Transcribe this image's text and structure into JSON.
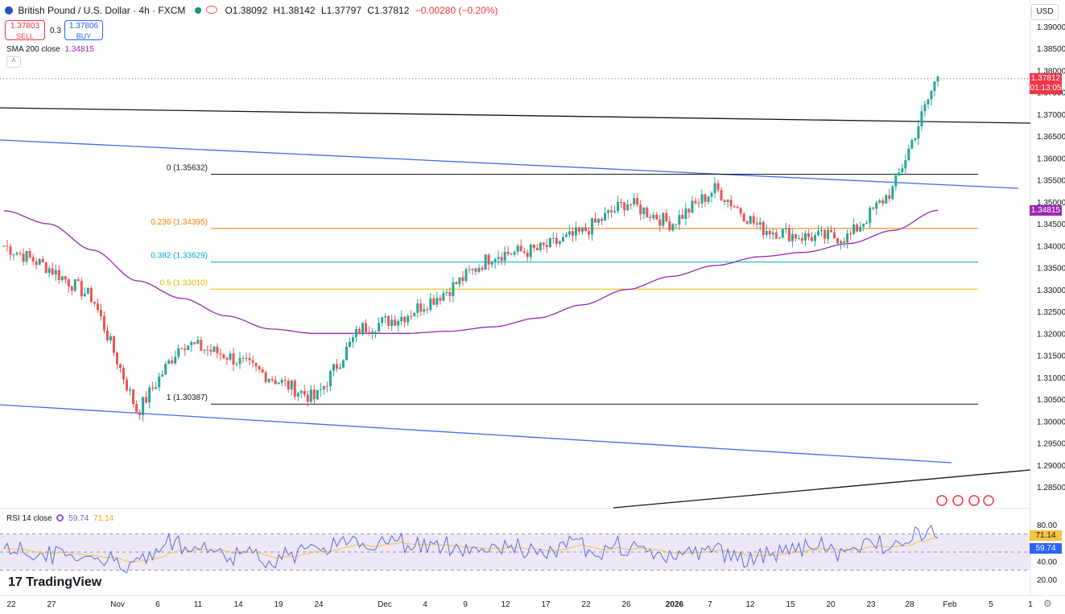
{
  "header": {
    "title": "British Pound / U.S. Dollar · 4h · FXCM",
    "ohlc": [
      {
        "label": "O",
        "value": "1.38092"
      },
      {
        "label": "H",
        "value": "1.38142"
      },
      {
        "label": "L",
        "value": "1.37797"
      },
      {
        "label": "C",
        "value": "1.37812"
      }
    ],
    "change": "−0.00280 (−0.20%)",
    "sell": {
      "price": "1.37803",
      "label": "SELL"
    },
    "buy": {
      "price": "1.37806",
      "label": "BUY"
    },
    "spread": "0.3",
    "currency": "USD"
  },
  "indicators": {
    "sma": {
      "label": "SMA 200 close",
      "value": "1.34815"
    },
    "rsi": {
      "label": "RSI 14 close",
      "value1": "59.74",
      "value2": "71.14"
    }
  },
  "price_axis": {
    "ticks": [
      "1.39000",
      "1.38500",
      "1.38000",
      "1.37500",
      "1.37000",
      "1.36500",
      "1.36000",
      "1.35500",
      "1.35000",
      "1.34500",
      "1.34000",
      "1.33500",
      "1.33000",
      "1.32500",
      "1.32000",
      "1.31500",
      "1.31000",
      "1.30500",
      "1.30000",
      "1.29500",
      "1.29000",
      "1.28500"
    ],
    "current_price": "1.37812",
    "countdown": "01:13:05",
    "sma_label": "1.34815"
  },
  "rsi_axis": {
    "ticks": [
      "80.00",
      "40.00",
      "20.00"
    ],
    "label1": "71.14",
    "label2": "59.74"
  },
  "time_axis": {
    "ticks": [
      "22",
      "27",
      "Nov",
      "6",
      "11",
      "14",
      "19",
      "24",
      "Dec",
      "4",
      "9",
      "12",
      "17",
      "22",
      "26",
      "2026",
      "7",
      "12",
      "15",
      "20",
      "23",
      "28",
      "Feb",
      "5",
      "1"
    ]
  },
  "fib_labels": [
    {
      "text": "0 (1.35632)",
      "color": "#131722"
    },
    {
      "text": "0.236 (1.34395)",
      "color": "#f57c00"
    },
    {
      "text": "0.382 (1.33629)",
      "color": "#00a9c4"
    },
    {
      "text": "0.5 (1.33010)",
      "color": "#e8b400"
    },
    {
      "text": "1 (1.30387)",
      "color": "#131722"
    }
  ],
  "logo": "TradingView",
  "colors": {
    "up": "#26a69a",
    "down": "#ef5350",
    "sma": "#9c27b0",
    "trend_blue": "#3f6ae8",
    "trend_black": "#131722",
    "rsi_line": "#5b6ee1",
    "rsi_signal": "#f6c343",
    "rsi_bg": "#ede7f6"
  },
  "chart_data": {
    "type": "line",
    "title": "British Pound / U.S. Dollar · 4h · FXCM",
    "ylim": [
      1.284,
      1.392
    ],
    "x": [
      "22",
      "27",
      "Nov",
      "6",
      "11",
      "14",
      "19",
      "24",
      "Dec",
      "4",
      "9",
      "12",
      "17",
      "22",
      "26",
      "2026",
      "7",
      "12",
      "15",
      "20",
      "23",
      "28"
    ],
    "series": [
      {
        "name": "",
        "values": [
          1.34,
          1.335,
          1.328,
          1.302,
          1.318,
          1.315,
          1.31,
          1.305,
          1.321,
          1.324,
          1.33,
          1.338,
          1.339,
          1.343,
          1.35,
          1.345,
          1.353,
          1.344,
          1.342,
          1.342,
          1.353,
          1.379
        ]
      },
      {
        "name": "SMA 200 close",
        "values": [
          1.348,
          1.345,
          1.339,
          1.332,
          1.328,
          1.324,
          1.321,
          1.32,
          1.32,
          1.32,
          1.3205,
          1.3215,
          1.3235,
          1.3265,
          1.33,
          1.333,
          1.3355,
          1.3375,
          1.3385,
          1.3405,
          1.3435,
          1.3481
        ]
      }
    ],
    "fibonacci": [
      {
        "level": "0",
        "price": 1.35632
      },
      {
        "level": "0.236",
        "price": 1.34395
      },
      {
        "level": "0.382",
        "price": 1.33629
      },
      {
        "level": "0.5",
        "price": 1.3301
      },
      {
        "level": "1",
        "price": 1.30387
      }
    ],
    "rsi": {
      "name": "RSI 14 close",
      "last": 59.74,
      "signal_last": 71.14,
      "bands": [
        30,
        70
      ]
    }
  }
}
